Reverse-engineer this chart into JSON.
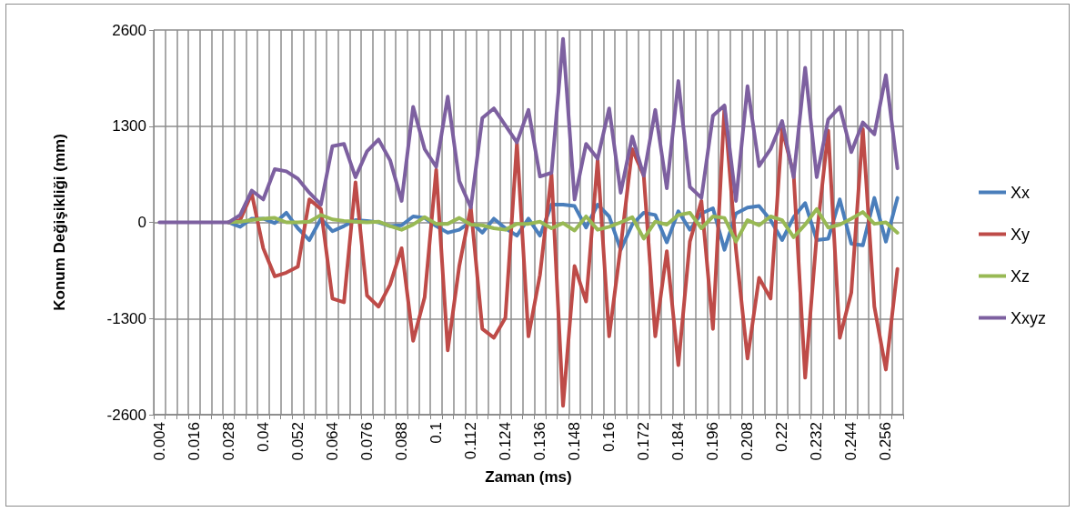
{
  "chart_data": {
    "type": "line",
    "xlabel": "Zaman (ms)",
    "ylabel": "Konum Değişikliği (mm)",
    "categories": [
      "0.004",
      null,
      null,
      "0.016",
      null,
      null,
      "0.028",
      null,
      null,
      "0.04",
      null,
      null,
      "0.052",
      null,
      null,
      "0.064",
      null,
      null,
      "0.076",
      null,
      null,
      "0.088",
      null,
      null,
      "0.1",
      null,
      null,
      "0.112",
      null,
      null,
      "0.124",
      null,
      null,
      "0.136",
      null,
      null,
      "0.148",
      null,
      null,
      "0.16",
      null,
      null,
      "0.172",
      null,
      null,
      "0.184",
      null,
      null,
      "0.196",
      null,
      null,
      "0.208",
      null,
      null,
      "0.22",
      null,
      null,
      "0.232",
      null,
      null,
      "0.244",
      null,
      null,
      "0.256",
      null
    ],
    "ylim": [
      -2600,
      2600
    ],
    "yticks": [
      -2600,
      -1300,
      0,
      1300,
      2600
    ],
    "grid": true,
    "legend": "right",
    "marker": "none",
    "line_style": "solid",
    "series": [
      {
        "name": "Xx",
        "color": "#4a7ebb",
        "values": [
          null,
          null,
          null,
          null,
          null,
          null,
          0,
          -60,
          50,
          50,
          -10,
          130,
          -80,
          -240,
          50,
          -120,
          -50,
          30,
          20,
          0,
          -50,
          -40,
          80,
          60,
          -50,
          -140,
          -100,
          10,
          -140,
          50,
          -80,
          -180,
          50,
          -180,
          240,
          240,
          220,
          -70,
          240,
          80,
          -370,
          -30,
          130,
          100,
          -270,
          150,
          -100,
          120,
          190,
          -370,
          120,
          200,
          220,
          30,
          -240,
          70,
          260,
          -240,
          -220,
          310,
          -290,
          -310,
          330,
          -260,
          330
        ]
      },
      {
        "name": "Xy",
        "color": "#be4b48",
        "values": [
          null,
          null,
          null,
          null,
          null,
          null,
          0,
          30,
          390,
          -350,
          -730,
          -680,
          -600,
          310,
          180,
          -1030,
          -1080,
          540,
          -990,
          -1140,
          -840,
          -350,
          -1600,
          -1010,
          710,
          -1730,
          -590,
          200,
          -1440,
          -1560,
          -1290,
          1070,
          -1540,
          -710,
          650,
          -2480,
          -590,
          -1070,
          840,
          -1540,
          -330,
          990,
          630,
          -1540,
          -390,
          -1930,
          -260,
          290,
          -1440,
          1560,
          -370,
          -1840,
          -750,
          -1030,
          1260,
          650,
          -2100,
          -180,
          1240,
          -1560,
          -950,
          1260,
          -1140,
          -1990,
          -630
        ]
      },
      {
        "name": "Xz",
        "color": "#98b954",
        "values": [
          null,
          null,
          null,
          null,
          null,
          null,
          0,
          10,
          30,
          50,
          60,
          0,
          0,
          10,
          100,
          40,
          20,
          10,
          0,
          10,
          -50,
          -100,
          -30,
          70,
          -20,
          -20,
          60,
          -30,
          -40,
          -80,
          -100,
          -20,
          -20,
          10,
          -80,
          -10,
          -110,
          80,
          -100,
          -60,
          0,
          70,
          -220,
          10,
          -30,
          100,
          130,
          -80,
          80,
          60,
          -260,
          30,
          -40,
          80,
          30,
          -200,
          -30,
          180,
          -70,
          -30,
          50,
          140,
          -20,
          0,
          -140
        ]
      },
      {
        "name": "Xxyz",
        "color": "#7d60a0",
        "values": [
          0,
          0,
          0,
          0,
          0,
          0,
          0,
          100,
          430,
          310,
          720,
          690,
          590,
          400,
          240,
          1030,
          1060,
          610,
          960,
          1120,
          840,
          290,
          1560,
          990,
          750,
          1700,
          560,
          200,
          1410,
          1540,
          1310,
          1080,
          1520,
          620,
          670,
          2480,
          310,
          1060,
          860,
          1540,
          400,
          1160,
          630,
          1520,
          460,
          1910,
          480,
          330,
          1440,
          1580,
          290,
          1840,
          760,
          990,
          1370,
          610,
          2090,
          610,
          1390,
          1560,
          950,
          1350,
          1190,
          1990,
          730
        ]
      }
    ]
  }
}
